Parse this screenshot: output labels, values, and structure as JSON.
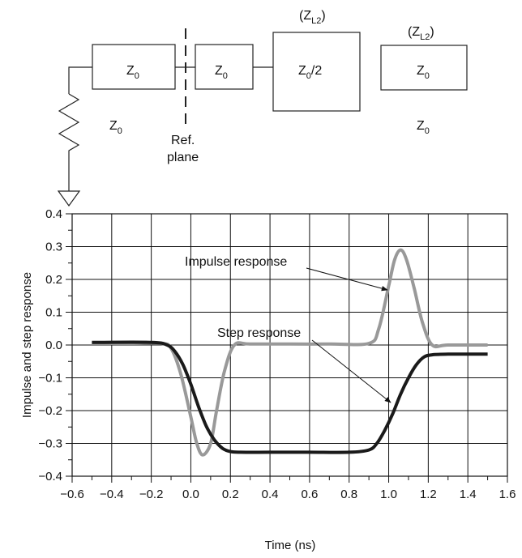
{
  "diagram": {
    "boxes": [
      {
        "text": "Z",
        "sub": "0",
        "suffix": ""
      },
      {
        "text": "Z",
        "sub": "0",
        "suffix": ""
      },
      {
        "text": "Z",
        "sub": "0",
        "suffix": "/2"
      },
      {
        "text": "Z",
        "sub": "0",
        "suffix": ""
      }
    ],
    "above_labels": [
      {
        "text": "(Z",
        "sub": "L2",
        "suffix": ")"
      },
      {
        "text": "(Z",
        "sub": "L2",
        "suffix": ")"
      }
    ],
    "below_labels": [
      {
        "text": "Z",
        "sub": "0"
      },
      {
        "text": "Z",
        "sub": "0"
      }
    ],
    "ref_plane": [
      "Ref.",
      "plane"
    ]
  },
  "chart_data": {
    "type": "line",
    "xlabel": "Time (ns)",
    "ylabel": "Impulse and step response",
    "xlim": [
      -0.6,
      1.6
    ],
    "ylim": [
      -0.4,
      0.4
    ],
    "x_ticks": [
      "−0.6",
      "−0.4",
      "−0.2",
      "0.0",
      "0.2",
      "0.4",
      "0.6",
      "0.8",
      "1.0",
      "1.2",
      "1.4",
      "1.6"
    ],
    "y_ticks": [
      "0.4",
      "0.3",
      "0.2",
      "0.1",
      "0.0",
      "−0.1",
      "−0.2",
      "−0.3",
      "−0.4"
    ],
    "grid": true,
    "annotations": [
      "Impulse response",
      "Step response"
    ],
    "series": [
      {
        "name": "Impulse response",
        "color": "#999999",
        "x": [
          -0.5,
          -0.3,
          -0.15,
          -0.1,
          -0.05,
          0.0,
          0.03,
          0.06,
          0.1,
          0.13,
          0.17,
          0.22,
          0.3,
          0.5,
          0.7,
          0.9,
          0.95,
          1.0,
          1.03,
          1.06,
          1.09,
          1.13,
          1.17,
          1.22,
          1.3,
          1.5
        ],
        "y": [
          0.005,
          0.005,
          0.005,
          -0.01,
          -0.09,
          -0.22,
          -0.3,
          -0.335,
          -0.3,
          -0.2,
          -0.08,
          0.0,
          0.003,
          0.003,
          0.003,
          0.005,
          0.05,
          0.18,
          0.26,
          0.29,
          0.26,
          0.17,
          0.07,
          0.0,
          0.0,
          0.0
        ]
      },
      {
        "name": "Step response",
        "color": "#1a1a1a",
        "x": [
          -0.5,
          -0.2,
          -0.12,
          -0.08,
          -0.04,
          0.0,
          0.04,
          0.08,
          0.12,
          0.16,
          0.2,
          0.25,
          0.4,
          0.6,
          0.8,
          0.9,
          0.94,
          0.98,
          1.02,
          1.06,
          1.1,
          1.14,
          1.18,
          1.22,
          1.3,
          1.5
        ],
        "y": [
          0.008,
          0.008,
          0.0,
          -0.02,
          -0.06,
          -0.12,
          -0.19,
          -0.25,
          -0.29,
          -0.315,
          -0.325,
          -0.327,
          -0.327,
          -0.327,
          -0.327,
          -0.32,
          -0.3,
          -0.26,
          -0.21,
          -0.15,
          -0.1,
          -0.06,
          -0.036,
          -0.03,
          -0.028,
          -0.028
        ]
      }
    ]
  }
}
